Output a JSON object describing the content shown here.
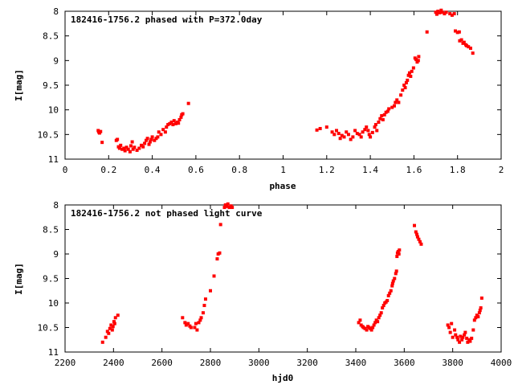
{
  "chart_data": [
    {
      "type": "scatter",
      "title": "182416-1756.2 phased with P=372.0day",
      "xlabel": "phase",
      "ylabel": "I[mag]",
      "xlim": [
        0,
        2
      ],
      "ylim": [
        8,
        11
      ],
      "y_inverted": true,
      "grid": false,
      "point_color": "#ff0000",
      "xticks": [
        0,
        0.2,
        0.4,
        0.6,
        0.8,
        1,
        1.2,
        1.4,
        1.6,
        1.8,
        2
      ],
      "xtick_labels": [
        "0",
        "0.2",
        "0.4",
        "0.6",
        "0.8",
        "1",
        "1.2",
        "1.4",
        "1.6",
        "1.8",
        "2"
      ],
      "yticks": [
        8,
        8.5,
        9,
        9.5,
        10,
        10.5,
        11
      ],
      "ytick_labels": [
        "8",
        "8.5",
        "9",
        "9.5",
        "10",
        "10.5",
        "11"
      ],
      "series": [
        {
          "points": [
            [
              0.152,
              10.42
            ],
            [
              0.155,
              10.45
            ],
            [
              0.158,
              10.47
            ],
            [
              0.163,
              10.44
            ],
            [
              0.17,
              10.66
            ],
            [
              0.235,
              10.62
            ],
            [
              0.24,
              10.6
            ],
            [
              0.245,
              10.75
            ],
            [
              0.25,
              10.78
            ],
            [
              0.255,
              10.72
            ],
            [
              0.262,
              10.8
            ],
            [
              0.27,
              10.78
            ],
            [
              0.275,
              10.83
            ],
            [
              0.282,
              10.76
            ],
            [
              0.29,
              10.8
            ],
            [
              0.298,
              10.85
            ],
            [
              0.302,
              10.73
            ],
            [
              0.308,
              10.65
            ],
            [
              0.312,
              10.8
            ],
            [
              0.318,
              10.76
            ],
            [
              0.33,
              10.82
            ],
            [
              0.34,
              10.78
            ],
            [
              0.35,
              10.72
            ],
            [
              0.358,
              10.75
            ],
            [
              0.365,
              10.68
            ],
            [
              0.372,
              10.62
            ],
            [
              0.378,
              10.58
            ],
            [
              0.385,
              10.7
            ],
            [
              0.39,
              10.65
            ],
            [
              0.395,
              10.6
            ],
            [
              0.4,
              10.55
            ],
            [
              0.41,
              10.62
            ],
            [
              0.418,
              10.58
            ],
            [
              0.425,
              10.55
            ],
            [
              0.43,
              10.45
            ],
            [
              0.44,
              10.5
            ],
            [
              0.45,
              10.4
            ],
            [
              0.46,
              10.45
            ],
            [
              0.465,
              10.35
            ],
            [
              0.472,
              10.3
            ],
            [
              0.48,
              10.28
            ],
            [
              0.488,
              10.25
            ],
            [
              0.495,
              10.3
            ],
            [
              0.5,
              10.22
            ],
            [
              0.508,
              10.28
            ],
            [
              0.515,
              10.25
            ],
            [
              0.52,
              10.27
            ],
            [
              0.525,
              10.2
            ],
            [
              0.532,
              10.15
            ],
            [
              0.535,
              10.1
            ],
            [
              0.54,
              10.08
            ],
            [
              0.566,
              9.87
            ],
            [
              1.155,
              10.41
            ],
            [
              1.17,
              10.38
            ],
            [
              1.2,
              10.35
            ],
            [
              1.225,
              10.45
            ],
            [
              1.235,
              10.5
            ],
            [
              1.245,
              10.42
            ],
            [
              1.255,
              10.48
            ],
            [
              1.262,
              10.58
            ],
            [
              1.27,
              10.52
            ],
            [
              1.28,
              10.55
            ],
            [
              1.29,
              10.45
            ],
            [
              1.3,
              10.5
            ],
            [
              1.31,
              10.6
            ],
            [
              1.32,
              10.55
            ],
            [
              1.33,
              10.42
            ],
            [
              1.34,
              10.48
            ],
            [
              1.35,
              10.5
            ],
            [
              1.358,
              10.55
            ],
            [
              1.365,
              10.45
            ],
            [
              1.375,
              10.4
            ],
            [
              1.382,
              10.35
            ],
            [
              1.39,
              10.42
            ],
            [
              1.395,
              10.5
            ],
            [
              1.4,
              10.55
            ],
            [
              1.41,
              10.46
            ],
            [
              1.42,
              10.35
            ],
            [
              1.425,
              10.3
            ],
            [
              1.43,
              10.42
            ],
            [
              1.438,
              10.25
            ],
            [
              1.445,
              10.18
            ],
            [
              1.452,
              10.12
            ],
            [
              1.458,
              10.2
            ],
            [
              1.465,
              10.1
            ],
            [
              1.472,
              10.05
            ],
            [
              1.48,
              10.03
            ],
            [
              1.485,
              9.98
            ],
            [
              1.5,
              9.95
            ],
            [
              1.51,
              9.92
            ],
            [
              1.515,
              9.85
            ],
            [
              1.522,
              9.8
            ],
            [
              1.53,
              9.85
            ],
            [
              1.54,
              9.7
            ],
            [
              1.548,
              9.6
            ],
            [
              1.555,
              9.5
            ],
            [
              1.56,
              9.55
            ],
            [
              1.565,
              9.45
            ],
            [
              1.57,
              9.4
            ],
            [
              1.575,
              9.3
            ],
            [
              1.58,
              9.25
            ],
            [
              1.585,
              9.32
            ],
            [
              1.59,
              9.22
            ],
            [
              1.598,
              9.15
            ],
            [
              1.605,
              8.95
            ],
            [
              1.61,
              8.98
            ],
            [
              1.615,
              9.03
            ],
            [
              1.62,
              9.0
            ],
            [
              1.622,
              8.92
            ],
            [
              1.66,
              8.42
            ],
            [
              1.7,
              8.02
            ],
            [
              1.705,
              8.06
            ],
            [
              1.71,
              8.0
            ],
            [
              1.718,
              8.03
            ],
            [
              1.725,
              7.98
            ],
            [
              1.73,
              8.02
            ],
            [
              1.74,
              8.05
            ],
            [
              1.748,
              8.02
            ],
            [
              1.765,
              8.05
            ],
            [
              1.775,
              8.08
            ],
            [
              1.785,
              8.05
            ],
            [
              1.79,
              8.4
            ],
            [
              1.8,
              8.43
            ],
            [
              1.808,
              8.42
            ],
            [
              1.81,
              8.6
            ],
            [
              1.818,
              8.58
            ],
            [
              1.825,
              8.65
            ],
            [
              1.83,
              8.63
            ],
            [
              1.838,
              8.68
            ],
            [
              1.842,
              8.7
            ],
            [
              1.85,
              8.72
            ],
            [
              1.86,
              8.75
            ],
            [
              1.87,
              8.85
            ]
          ]
        }
      ]
    },
    {
      "type": "scatter",
      "title": "182416-1756.2 not phased light curve",
      "xlabel": "hjd0",
      "ylabel": "I[mag]",
      "xlim": [
        2200,
        4000
      ],
      "ylim": [
        8,
        11
      ],
      "y_inverted": true,
      "grid": false,
      "point_color": "#ff0000",
      "xticks": [
        2200,
        2400,
        2600,
        2800,
        3000,
        3200,
        3400,
        3600,
        3800,
        4000
      ],
      "xtick_labels": [
        "2200",
        "2400",
        "2600",
        "2800",
        "3000",
        "3200",
        "3400",
        "3600",
        "3800",
        "4000"
      ],
      "yticks": [
        8,
        8.5,
        9,
        9.5,
        10,
        10.5,
        11
      ],
      "ytick_labels": [
        "8",
        "8.5",
        "9",
        "9.5",
        "10",
        "10.5",
        "11"
      ],
      "series": [
        {
          "points": [
            [
              2355,
              10.8
            ],
            [
              2368,
              10.7
            ],
            [
              2375,
              10.58
            ],
            [
              2380,
              10.62
            ],
            [
              2385,
              10.52
            ],
            [
              2390,
              10.45
            ],
            [
              2395,
              10.55
            ],
            [
              2398,
              10.48
            ],
            [
              2402,
              10.38
            ],
            [
              2405,
              10.42
            ],
            [
              2408,
              10.3
            ],
            [
              2418,
              10.25
            ],
            [
              2685,
              10.3
            ],
            [
              2695,
              10.4
            ],
            [
              2700,
              10.45
            ],
            [
              2708,
              10.42
            ],
            [
              2715,
              10.47
            ],
            [
              2720,
              10.5
            ],
            [
              2735,
              10.5
            ],
            [
              2740,
              10.42
            ],
            [
              2745,
              10.55
            ],
            [
              2752,
              10.4
            ],
            [
              2758,
              10.35
            ],
            [
              2762,
              10.3
            ],
            [
              2770,
              10.2
            ],
            [
              2775,
              10.05
            ],
            [
              2780,
              9.92
            ],
            [
              2800,
              9.75
            ],
            [
              2815,
              9.45
            ],
            [
              2828,
              9.1
            ],
            [
              2832,
              9.0
            ],
            [
              2838,
              8.98
            ],
            [
              2842,
              8.4
            ],
            [
              2858,
              8.05
            ],
            [
              2862,
              8.0
            ],
            [
              2868,
              8.03
            ],
            [
              2872,
              7.98
            ],
            [
              2878,
              8.05
            ],
            [
              2885,
              8.02
            ],
            [
              2890,
              8.05
            ],
            [
              3412,
              10.4
            ],
            [
              3418,
              10.35
            ],
            [
              3422,
              10.45
            ],
            [
              3428,
              10.48
            ],
            [
              3432,
              10.5
            ],
            [
              3438,
              10.52
            ],
            [
              3445,
              10.55
            ],
            [
              3450,
              10.48
            ],
            [
              3455,
              10.5
            ],
            [
              3460,
              10.52
            ],
            [
              3465,
              10.55
            ],
            [
              3470,
              10.5
            ],
            [
              3475,
              10.45
            ],
            [
              3480,
              10.4
            ],
            [
              3485,
              10.35
            ],
            [
              3490,
              10.38
            ],
            [
              3495,
              10.3
            ],
            [
              3500,
              10.25
            ],
            [
              3505,
              10.2
            ],
            [
              3510,
              10.1
            ],
            [
              3515,
              10.05
            ],
            [
              3520,
              10.0
            ],
            [
              3525,
              9.98
            ],
            [
              3530,
              9.95
            ],
            [
              3535,
              9.85
            ],
            [
              3540,
              9.8
            ],
            [
              3545,
              9.75
            ],
            [
              3550,
              9.65
            ],
            [
              3552,
              9.6
            ],
            [
              3555,
              9.55
            ],
            [
              3560,
              9.5
            ],
            [
              3565,
              9.4
            ],
            [
              3568,
              9.35
            ],
            [
              3570,
              9.05
            ],
            [
              3572,
              8.98
            ],
            [
              3575,
              8.95
            ],
            [
              3578,
              9.0
            ],
            [
              3580,
              8.92
            ],
            [
              3642,
              8.42
            ],
            [
              3648,
              8.55
            ],
            [
              3652,
              8.6
            ],
            [
              3655,
              8.65
            ],
            [
              3660,
              8.7
            ],
            [
              3665,
              8.75
            ],
            [
              3670,
              8.8
            ],
            [
              3780,
              10.45
            ],
            [
              3785,
              10.5
            ],
            [
              3790,
              10.6
            ],
            [
              3795,
              10.42
            ],
            [
              3800,
              10.7
            ],
            [
              3808,
              10.55
            ],
            [
              3812,
              10.65
            ],
            [
              3818,
              10.7
            ],
            [
              3822,
              10.75
            ],
            [
              3828,
              10.8
            ],
            [
              3832,
              10.68
            ],
            [
              3838,
              10.75
            ],
            [
              3842,
              10.7
            ],
            [
              3848,
              10.65
            ],
            [
              3852,
              10.6
            ],
            [
              3858,
              10.72
            ],
            [
              3862,
              10.8
            ],
            [
              3868,
              10.75
            ],
            [
              3872,
              10.78
            ],
            [
              3878,
              10.72
            ],
            [
              3885,
              10.55
            ],
            [
              3890,
              10.35
            ],
            [
              3895,
              10.3
            ],
            [
              3900,
              10.25
            ],
            [
              3905,
              10.28
            ],
            [
              3910,
              10.2
            ],
            [
              3913,
              10.15
            ],
            [
              3916,
              10.1
            ],
            [
              3920,
              9.9
            ]
          ]
        }
      ]
    }
  ]
}
